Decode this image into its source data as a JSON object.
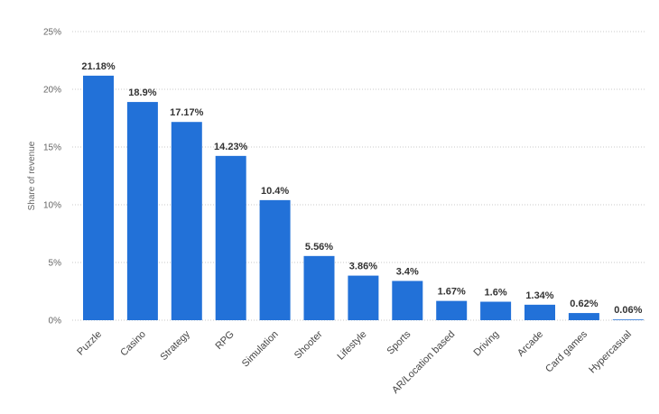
{
  "chart_data": {
    "type": "bar",
    "categories": [
      "Puzzle",
      "Casino",
      "Strategy",
      "RPG",
      "Simulation",
      "Shooter",
      "Lifestyle",
      "Sports",
      "AR/Location based",
      "Driving",
      "Arcade",
      "Card games",
      "Hypercasual"
    ],
    "values": [
      21.18,
      18.9,
      17.17,
      14.23,
      10.4,
      5.56,
      3.86,
      3.4,
      1.67,
      1.6,
      1.34,
      0.62,
      0.06
    ],
    "data_labels": [
      "21.18%",
      "18.9%",
      "17.17%",
      "14.23%",
      "10.4%",
      "5.56%",
      "3.86%",
      "3.4%",
      "1.67%",
      "1.6%",
      "1.34%",
      "0.62%",
      "0.06%"
    ],
    "ylabel": "Share of revenue",
    "ylim": [
      0,
      25
    ],
    "yticks": [
      0,
      5,
      10,
      15,
      20,
      25
    ],
    "ytick_labels": [
      "0%",
      "5%",
      "10%",
      "15%",
      "20%",
      "25%"
    ],
    "grid": true,
    "bar_color": "#2271d8"
  }
}
